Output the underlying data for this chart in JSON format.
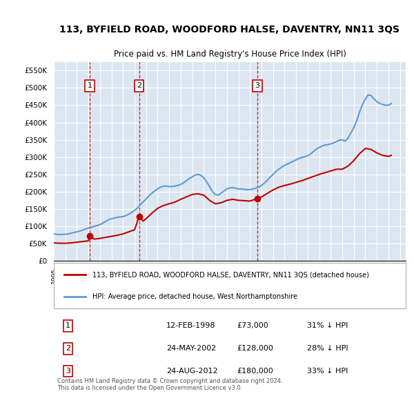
{
  "title": "113, BYFIELD ROAD, WOODFORD HALSE, DAVENTRY, NN11 3QS",
  "subtitle": "Price paid vs. HM Land Registry's House Price Index (HPI)",
  "ylim": [
    0,
    575000
  ],
  "yticks": [
    0,
    50000,
    100000,
    150000,
    200000,
    250000,
    300000,
    350000,
    400000,
    450000,
    500000,
    550000
  ],
  "ytick_labels": [
    "£0",
    "£50K",
    "£100K",
    "£150K",
    "£200K",
    "£250K",
    "£300K",
    "£350K",
    "£400K",
    "£450K",
    "£500K",
    "£550K"
  ],
  "hpi_color": "#5b9bd5",
  "price_color": "#c00000",
  "background_color": "#dce6f1",
  "plot_bg_color": "#ffffff",
  "sale_dates": [
    1998.12,
    2002.39,
    2012.65
  ],
  "sale_prices": [
    73000,
    128000,
    180000
  ],
  "sale_labels": [
    "1",
    "2",
    "3"
  ],
  "legend_price_label": "113, BYFIELD ROAD, WOODFORD HALSE, DAVENTRY, NN11 3QS (detached house)",
  "legend_hpi_label": "HPI: Average price, detached house, West Northamptonshire",
  "table_entries": [
    {
      "num": "1",
      "date": "12-FEB-1998",
      "price": "£73,000",
      "hpi": "31% ↓ HPI"
    },
    {
      "num": "2",
      "date": "24-MAY-2002",
      "price": "£128,000",
      "hpi": "28% ↓ HPI"
    },
    {
      "num": "3",
      "date": "24-AUG-2012",
      "price": "£180,000",
      "hpi": "33% ↓ HPI"
    }
  ],
  "footer": "Contains HM Land Registry data © Crown copyright and database right 2024.\nThis data is licensed under the Open Government Licence v3.0.",
  "hpi_data": {
    "years": [
      1995.0,
      1995.25,
      1995.5,
      1995.75,
      1996.0,
      1996.25,
      1996.5,
      1996.75,
      1997.0,
      1997.25,
      1997.5,
      1997.75,
      1998.0,
      1998.25,
      1998.5,
      1998.75,
      1999.0,
      1999.25,
      1999.5,
      1999.75,
      2000.0,
      2000.25,
      2000.5,
      2000.75,
      2001.0,
      2001.25,
      2001.5,
      2001.75,
      2002.0,
      2002.25,
      2002.5,
      2002.75,
      2003.0,
      2003.25,
      2003.5,
      2003.75,
      2004.0,
      2004.25,
      2004.5,
      2004.75,
      2005.0,
      2005.25,
      2005.5,
      2005.75,
      2006.0,
      2006.25,
      2006.5,
      2006.75,
      2007.0,
      2007.25,
      2007.5,
      2007.75,
      2008.0,
      2008.25,
      2008.5,
      2008.75,
      2009.0,
      2009.25,
      2009.5,
      2009.75,
      2010.0,
      2010.25,
      2010.5,
      2010.75,
      2011.0,
      2011.25,
      2011.5,
      2011.75,
      2012.0,
      2012.25,
      2012.5,
      2012.75,
      2013.0,
      2013.25,
      2013.5,
      2013.75,
      2014.0,
      2014.25,
      2014.5,
      2014.75,
      2015.0,
      2015.25,
      2015.5,
      2015.75,
      2016.0,
      2016.25,
      2016.5,
      2016.75,
      2017.0,
      2017.25,
      2017.5,
      2017.75,
      2018.0,
      2018.25,
      2018.5,
      2018.75,
      2019.0,
      2019.25,
      2019.5,
      2019.75,
      2020.0,
      2020.25,
      2020.5,
      2020.75,
      2021.0,
      2021.25,
      2021.5,
      2021.75,
      2022.0,
      2022.25,
      2022.5,
      2022.75,
      2023.0,
      2023.25,
      2023.5,
      2023.75,
      2024.0,
      2024.25
    ],
    "values": [
      78000,
      77000,
      76000,
      76500,
      77000,
      78000,
      80000,
      82000,
      84000,
      86000,
      89000,
      92000,
      95000,
      97000,
      100000,
      102000,
      105000,
      109000,
      114000,
      119000,
      122000,
      124000,
      126000,
      127000,
      128000,
      131000,
      135000,
      140000,
      146000,
      153000,
      162000,
      171000,
      179000,
      188000,
      196000,
      202000,
      208000,
      213000,
      216000,
      216000,
      215000,
      215000,
      216000,
      218000,
      221000,
      226000,
      232000,
      238000,
      243000,
      248000,
      250000,
      247000,
      240000,
      228000,
      215000,
      200000,
      192000,
      190000,
      196000,
      202000,
      208000,
      211000,
      212000,
      210000,
      208000,
      208000,
      207000,
      206000,
      206000,
      208000,
      210000,
      213000,
      218000,
      225000,
      233000,
      242000,
      250000,
      258000,
      265000,
      271000,
      276000,
      280000,
      284000,
      288000,
      292000,
      296000,
      299000,
      301000,
      304000,
      309000,
      316000,
      323000,
      328000,
      332000,
      335000,
      336000,
      338000,
      341000,
      345000,
      349000,
      350000,
      346000,
      355000,
      370000,
      385000,
      405000,
      430000,
      452000,
      468000,
      480000,
      478000,
      468000,
      460000,
      455000,
      452000,
      450000,
      450000,
      455000
    ]
  },
  "price_data": {
    "years": [
      1995.0,
      1995.5,
      1996.0,
      1996.5,
      1997.0,
      1997.5,
      1998.0,
      1998.12,
      1998.5,
      1999.0,
      1999.5,
      2000.0,
      2000.5,
      2001.0,
      2001.5,
      2002.0,
      2002.39,
      2002.75,
      2003.0,
      2003.5,
      2004.0,
      2004.5,
      2005.0,
      2005.5,
      2006.0,
      2006.5,
      2007.0,
      2007.5,
      2008.0,
      2008.5,
      2009.0,
      2009.5,
      2010.0,
      2010.5,
      2011.0,
      2011.5,
      2012.0,
      2012.65,
      2013.0,
      2013.5,
      2014.0,
      2014.5,
      2015.0,
      2015.5,
      2016.0,
      2016.5,
      2017.0,
      2017.5,
      2018.0,
      2018.5,
      2019.0,
      2019.5,
      2020.0,
      2020.5,
      2021.0,
      2021.5,
      2022.0,
      2022.5,
      2023.0,
      2023.5,
      2024.0,
      2024.25
    ],
    "values": [
      52000,
      51000,
      51000,
      52000,
      54000,
      56000,
      58000,
      73000,
      63000,
      65000,
      68000,
      71000,
      74000,
      78000,
      84000,
      90000,
      128000,
      115000,
      122000,
      138000,
      152000,
      160000,
      165000,
      170000,
      178000,
      185000,
      192000,
      194000,
      190000,
      175000,
      165000,
      168000,
      175000,
      178000,
      175000,
      174000,
      173000,
      180000,
      185000,
      195000,
      205000,
      213000,
      218000,
      222000,
      227000,
      232000,
      238000,
      244000,
      250000,
      255000,
      260000,
      265000,
      265000,
      274000,
      290000,
      310000,
      325000,
      322000,
      312000,
      305000,
      302000,
      305000
    ]
  }
}
